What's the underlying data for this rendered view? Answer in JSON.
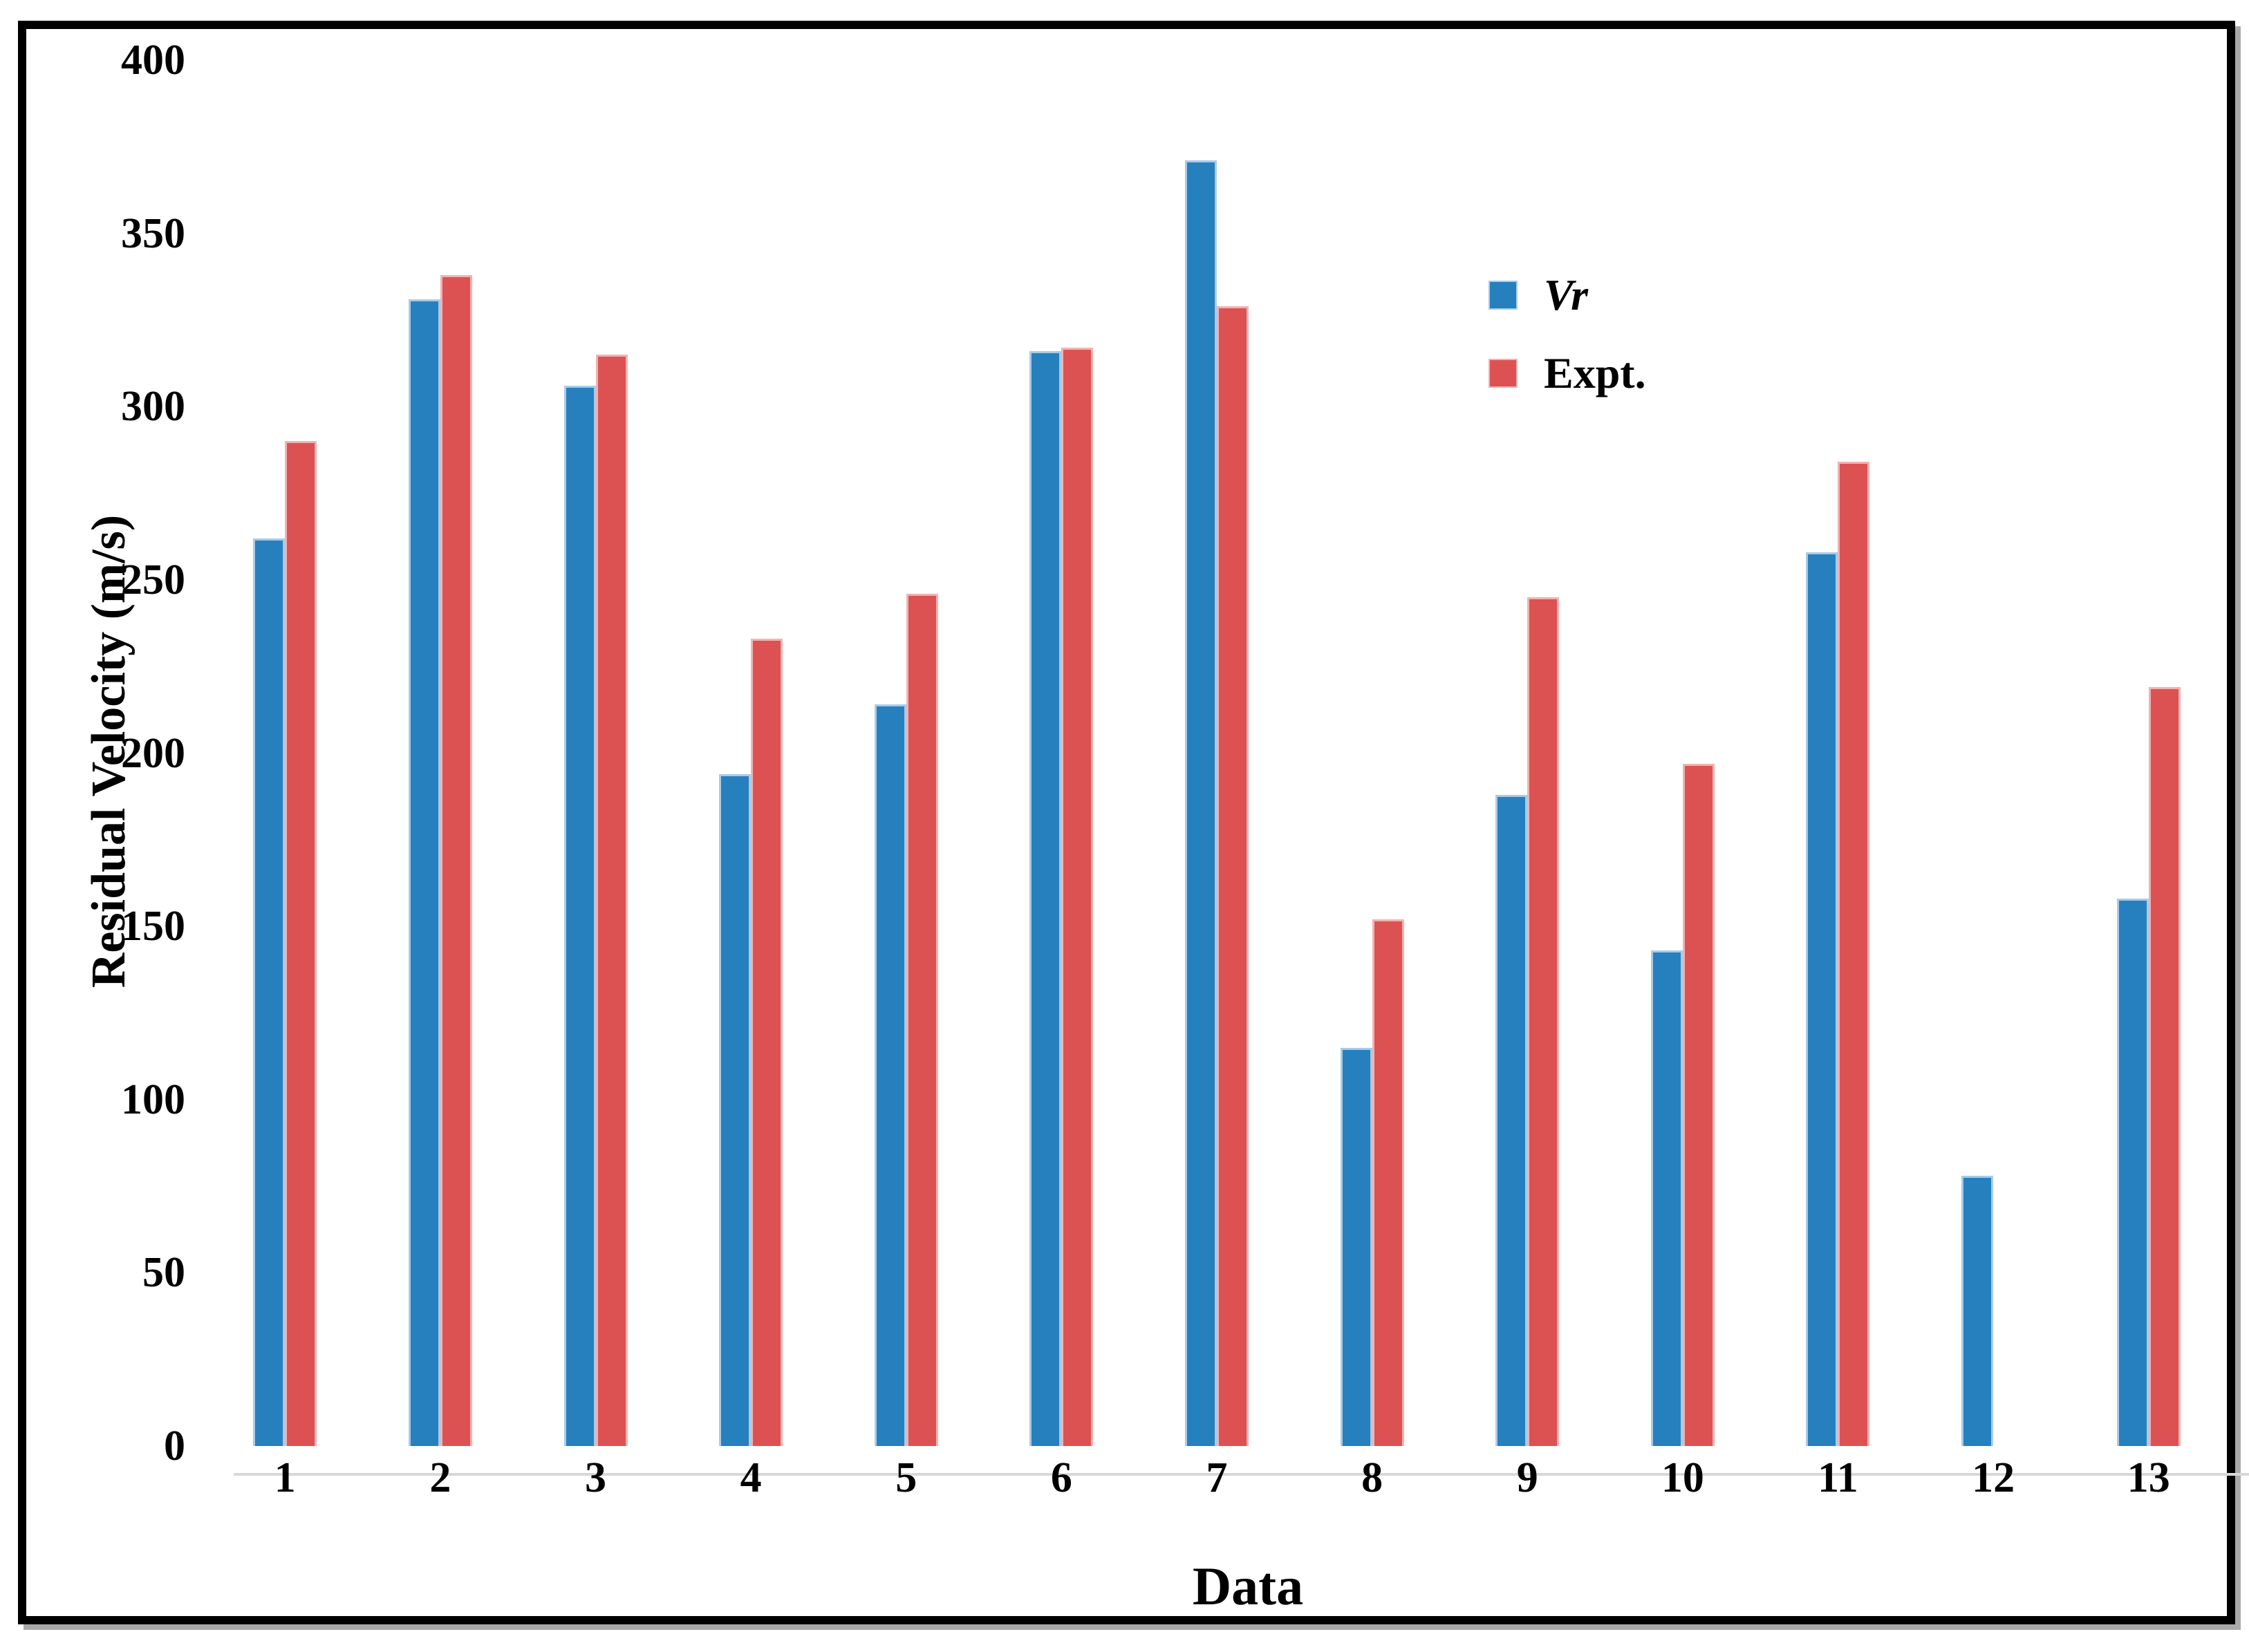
{
  "chart_data": {
    "type": "bar",
    "title": "",
    "categories": [
      "1",
      "2",
      "3",
      "4",
      "5",
      "6",
      "7",
      "8",
      "9",
      "10",
      "11",
      "12",
      "13"
    ],
    "series": [
      {
        "name": "Vr",
        "italic": true,
        "color": "#2680BE",
        "edge_color": "#A9CBE8",
        "values": [
          262,
          331,
          306,
          194,
          214,
          316,
          371,
          115,
          188,
          143,
          258,
          78,
          158
        ]
      },
      {
        "name": "Expt.",
        "italic": false,
        "color": "#DC5252",
        "edge_color": "#F2B2B2",
        "values": [
          290,
          338,
          315,
          233,
          246,
          317,
          329,
          152,
          245,
          197,
          284,
          null,
          219
        ]
      }
    ],
    "xlabel": "Data",
    "ylabel": "Residual Velocity (m/s)",
    "ylim": [
      0,
      400
    ],
    "yticks": [
      0,
      50,
      100,
      150,
      200,
      250,
      300,
      350,
      400
    ],
    "grid": false,
    "legend_position": "inside-upper-right",
    "axis_line_color": "#D8D8D8",
    "frame_color": "#000000",
    "background": "#FFFFFF"
  }
}
